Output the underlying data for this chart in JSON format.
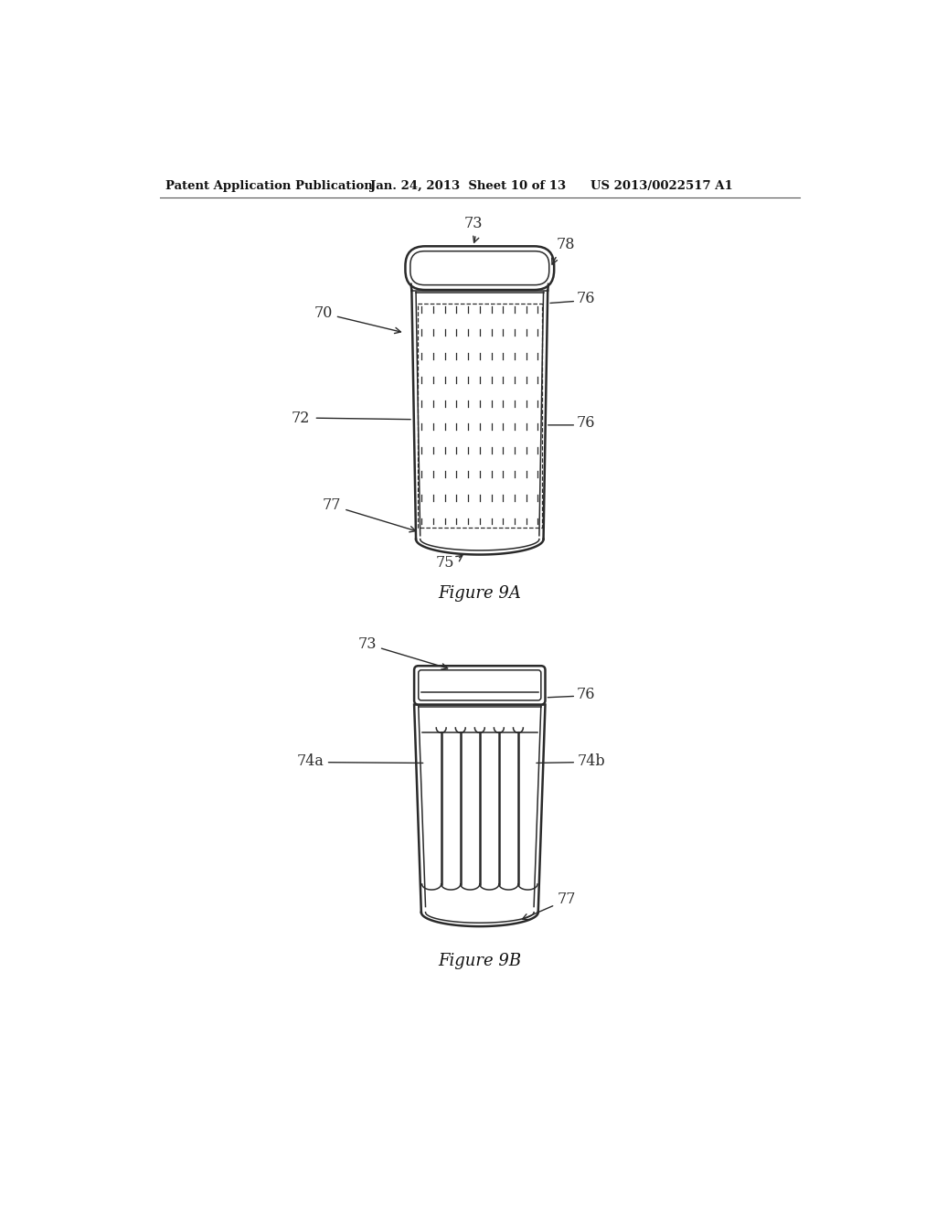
{
  "background_color": "#ffffff",
  "header_left": "Patent Application Publication",
  "header_mid": "Jan. 24, 2013  Sheet 10 of 13",
  "header_right": "US 2013/0022517 A1",
  "fig9a_caption": "Figure 9A",
  "fig9b_caption": "Figure 9B",
  "line_color": "#2a2a2a",
  "label_color": "#2a2a2a"
}
